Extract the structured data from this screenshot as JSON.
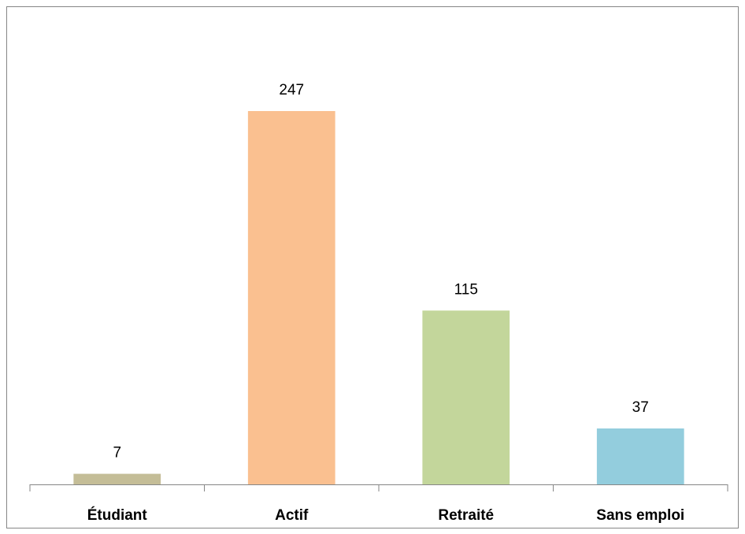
{
  "chart_data": {
    "type": "bar",
    "categories": [
      "Étudiant",
      "Actif",
      "Retraité",
      "Sans emploi"
    ],
    "values": [
      7,
      247,
      115,
      37
    ],
    "colors": [
      "#c4bd97",
      "#fac090",
      "#c3d69b",
      "#93cddd"
    ],
    "grid": false
  }
}
